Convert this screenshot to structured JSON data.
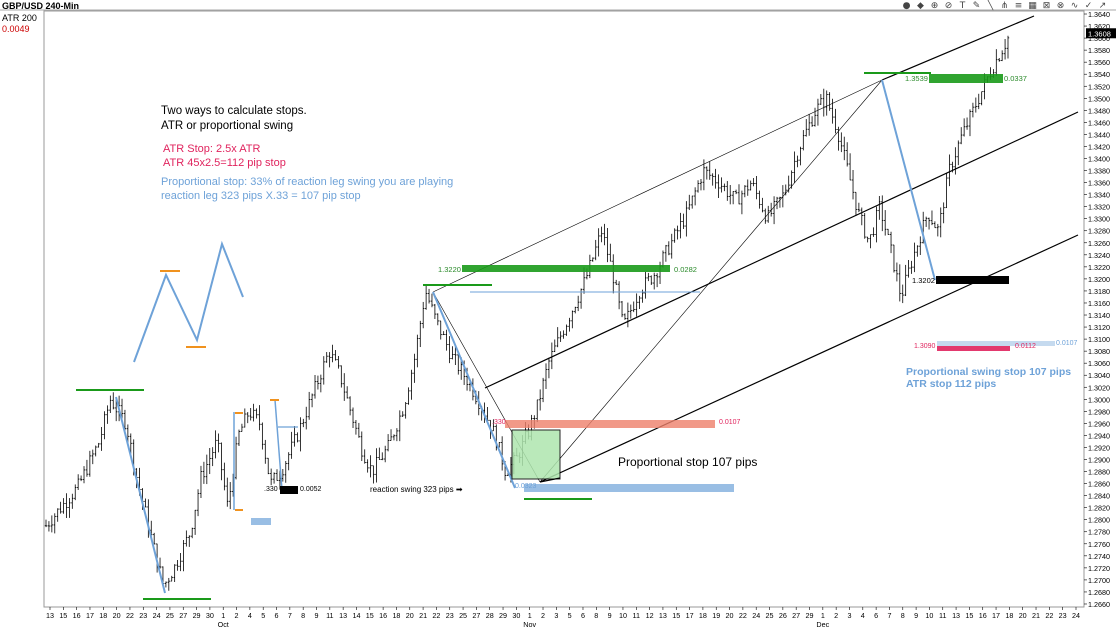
{
  "header": {
    "symbol_title": "GBP/USD 240-Min",
    "indicator_name": "ATR  200",
    "indicator_value": "0.0049"
  },
  "toolbar": {
    "icons": [
      "color-icon",
      "drawing-icon",
      "zoom-icon",
      "measure-icon",
      "text-icon",
      "pen-icon",
      "trendline-icon",
      "pitchfork-icon",
      "fib-icon",
      "box-icon",
      "cross-icon",
      "delete-icon",
      "wave-icon",
      "check-icon",
      "arrow-icon"
    ]
  },
  "notes": {
    "line1": "Two ways to calculate stops.",
    "line2": "ATR or proportional swing",
    "atr1": "ATR Stop: 2.5x ATR",
    "atr2": "ATR 45x2.5=112 pip stop",
    "prop1": "Proportional stop: 33% of reaction leg swing you are playing",
    "prop2": "reaction leg 323 pips X.33 = 107 pip stop",
    "prop_stop": "Proportional stop 107 pips",
    "reaction": "reaction swing 323 pips ➡",
    "summary1": "Proportional swing stop 107 pips",
    "summary2": "ATR stop 112 pips"
  },
  "labels": {
    "l1": "1.3220",
    "l1r": "0.0282",
    "l2": "1.3539",
    "l2r": "0.0337",
    "l3": "1.3202",
    "l4": "1.3090",
    "l4r": "0.0112",
    "l4r2": "0.0107",
    "l5": "0.0107",
    "l5l": ".330",
    "l6": "0.0323",
    "l7": ".330",
    "l7r": "0.0052",
    "price_current": "1.3608"
  },
  "chart_data": {
    "type": "candlestick",
    "title": "GBP/USD 240-Min",
    "y_ticks": [
      "1.3640",
      "1.3620",
      "1.3600",
      "1.3580",
      "1.3560",
      "1.3540",
      "1.3520",
      "1.3500",
      "1.3480",
      "1.3460",
      "1.3440",
      "1.3420",
      "1.3400",
      "1.3380",
      "1.3360",
      "1.3340",
      "1.3320",
      "1.3300",
      "1.3280",
      "1.3260",
      "1.3240",
      "1.3220",
      "1.3200",
      "1.3180",
      "1.3160",
      "1.3140",
      "1.3120",
      "1.3100",
      "1.3080",
      "1.3060",
      "1.3040",
      "1.3020",
      "1.3000",
      "1.2980",
      "1.2960",
      "1.2940",
      "1.2920",
      "1.2900",
      "1.2880",
      "1.2860",
      "1.2840",
      "1.2820",
      "1.2800",
      "1.2780",
      "1.2760",
      "1.2740",
      "1.2720",
      "1.2700",
      "1.2680",
      "1.2660"
    ],
    "ylim": [
      1.2655,
      1.3645
    ],
    "x_ticks": [
      "13",
      "15",
      "16",
      "17",
      "18",
      "20",
      "22",
      "23",
      "24",
      "25",
      "27",
      "29",
      "30",
      "1",
      "2",
      "4",
      "5",
      "6",
      "7",
      "8",
      "9",
      "11",
      "13",
      "14",
      "15",
      "16",
      "18",
      "20",
      "21",
      "22",
      "23",
      "25",
      "27",
      "28",
      "29",
      "30",
      "1",
      "2",
      "3",
      "5",
      "6",
      "8",
      "9",
      "10",
      "11",
      "12",
      "13",
      "15",
      "17",
      "18",
      "19",
      "20",
      "22",
      "24",
      "25",
      "26",
      "27",
      "29",
      "1",
      "2",
      "3",
      "4",
      "6",
      "7",
      "8",
      "9",
      "10",
      "11",
      "13",
      "15",
      "16",
      "17",
      "18",
      "20",
      "21",
      "22",
      "23",
      "24"
    ],
    "month_labels": [
      "Oct",
      "Nov",
      "Dec"
    ],
    "price_path": [
      [
        0,
        1.279
      ],
      [
        6,
        1.2855
      ],
      [
        10,
        1.293
      ],
      [
        12,
        1.3
      ],
      [
        15,
        1.296
      ],
      [
        17,
        1.287
      ],
      [
        20,
        1.276
      ],
      [
        22,
        1.269
      ],
      [
        24,
        1.272
      ],
      [
        27,
        1.278
      ],
      [
        29,
        1.287
      ],
      [
        32,
        1.293
      ],
      [
        34,
        1.282
      ],
      [
        36,
        1.294
      ],
      [
        38,
        1.298
      ],
      [
        40,
        1.296
      ],
      [
        42,
        1.286
      ],
      [
        44,
        1.288
      ],
      [
        47,
        1.294
      ],
      [
        50,
        1.301
      ],
      [
        53,
        1.308
      ],
      [
        55,
        1.304
      ],
      [
        57,
        1.298
      ],
      [
        59,
        1.292
      ],
      [
        61,
        1.288
      ],
      [
        64,
        1.292
      ],
      [
        67,
        1.299
      ],
      [
        69,
        1.307
      ],
      [
        71,
        1.318
      ],
      [
        73,
        1.313
      ],
      [
        76,
        1.307
      ],
      [
        79,
        1.303
      ],
      [
        82,
        1.298
      ],
      [
        84,
        1.294
      ],
      [
        86,
        1.288
      ],
      [
        88,
        1.29
      ],
      [
        90,
        1.294
      ],
      [
        92,
        1.299
      ],
      [
        94,
        1.306
      ],
      [
        96,
        1.31
      ],
      [
        99,
        1.316
      ],
      [
        101,
        1.32
      ],
      [
        104,
        1.328
      ],
      [
        106,
        1.321
      ],
      [
        108,
        1.312
      ],
      [
        111,
        1.318
      ],
      [
        114,
        1.321
      ],
      [
        117,
        1.326
      ],
      [
        120,
        1.331
      ],
      [
        123,
        1.338
      ],
      [
        126,
        1.336
      ],
      [
        129,
        1.333
      ],
      [
        132,
        1.336
      ],
      [
        135,
        1.33
      ],
      [
        138,
        1.334
      ],
      [
        141,
        1.342
      ],
      [
        144,
        1.348
      ],
      [
        146,
        1.35
      ],
      [
        148,
        1.345
      ],
      [
        150,
        1.338
      ],
      [
        152,
        1.331
      ],
      [
        154,
        1.326
      ],
      [
        156,
        1.332
      ],
      [
        158,
        1.325
      ],
      [
        160,
        1.317
      ],
      [
        162,
        1.323
      ],
      [
        165,
        1.331
      ],
      [
        167,
        1.328
      ],
      [
        169,
        1.338
      ],
      [
        171,
        1.343
      ],
      [
        173,
        1.347
      ],
      [
        175,
        1.351
      ],
      [
        177,
        1.355
      ],
      [
        180,
        1.36
      ]
    ]
  }
}
